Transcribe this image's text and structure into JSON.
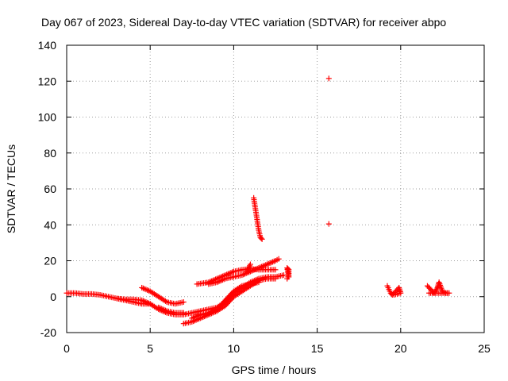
{
  "chart_data": {
    "type": "scatter",
    "title": "Day 067 of 2023, Sidereal Day-to-day VTEC variation (SDTVAR) for receiver abpo",
    "xlabel": "GPS time / hours",
    "ylabel": "SDTVAR / TECUs",
    "xlim": [
      0,
      25
    ],
    "ylim": [
      -20,
      140
    ],
    "xticks": [
      0,
      5,
      10,
      15,
      20,
      25
    ],
    "yticks": [
      -20,
      0,
      20,
      40,
      60,
      80,
      100,
      120,
      140
    ],
    "grid": true,
    "marker": "+",
    "marker_color": "#ff0000",
    "series": [
      {
        "name": "SDTVAR",
        "segments": [
          {
            "points": [
              [
                0.0,
                2
              ],
              [
                0.5,
                2
              ],
              [
                1.0,
                1.5
              ],
              [
                1.5,
                1.5
              ],
              [
                2.0,
                1
              ],
              [
                2.5,
                0
              ],
              [
                3.0,
                -1
              ],
              [
                3.5,
                -1.5
              ],
              [
                4.0,
                -1.5
              ],
              [
                4.5,
                -2
              ],
              [
                5.0,
                -4
              ],
              [
                5.5,
                -7
              ],
              [
                6.0,
                -9
              ],
              [
                6.5,
                -10
              ],
              [
                7.0,
                -10
              ],
              [
                7.5,
                -9
              ],
              [
                8.0,
                -8
              ],
              [
                8.5,
                -7
              ],
              [
                9.0,
                -6
              ],
              [
                9.5,
                -3
              ],
              [
                10.0,
                2
              ],
              [
                10.5,
                5
              ],
              [
                11.0,
                8
              ],
              [
                11.5,
                10
              ],
              [
                12.0,
                11
              ],
              [
                12.5,
                11
              ],
              [
                13.0,
                12
              ]
            ]
          },
          {
            "points": [
              [
                3.0,
                -1
              ],
              [
                3.5,
                -2
              ],
              [
                4.0,
                -3
              ],
              [
                4.5,
                -4
              ],
              [
                5.0,
                -4
              ]
            ]
          },
          {
            "points": [
              [
                4.5,
                5
              ],
              [
                5.0,
                3
              ],
              [
                5.5,
                0
              ],
              [
                6.0,
                -3
              ],
              [
                6.5,
                -4
              ],
              [
                7.0,
                -3
              ]
            ]
          },
          {
            "points": [
              [
                5.5,
                -6
              ],
              [
                6.0,
                -8
              ],
              [
                6.5,
                -9
              ],
              [
                7.0,
                -9
              ]
            ]
          },
          {
            "points": [
              [
                7.0,
                -15
              ],
              [
                7.5,
                -14
              ],
              [
                8.0,
                -12
              ],
              [
                8.5,
                -10
              ],
              [
                9.0,
                -8
              ],
              [
                9.5,
                -5
              ],
              [
                10.0,
                0
              ],
              [
                10.5,
                3
              ],
              [
                11.0,
                6
              ],
              [
                11.5,
                9
              ],
              [
                12.0,
                10
              ],
              [
                12.5,
                10
              ]
            ]
          },
          {
            "points": [
              [
                7.5,
                -12
              ],
              [
                8.0,
                -10
              ],
              [
                8.5,
                -9
              ],
              [
                9.0,
                -7
              ],
              [
                9.5,
                -2
              ],
              [
                10.0,
                3
              ],
              [
                10.5,
                6
              ],
              [
                11.0,
                7
              ],
              [
                11.5,
                8
              ]
            ]
          },
          {
            "points": [
              [
                7.8,
                7
              ],
              [
                8.5,
                8
              ],
              [
                9.0,
                10
              ],
              [
                9.5,
                12
              ],
              [
                10.0,
                14
              ],
              [
                10.5,
                15
              ],
              [
                11.0,
                15.5
              ],
              [
                11.5,
                15
              ],
              [
                12.0,
                15
              ],
              [
                12.5,
                15
              ]
            ]
          },
          {
            "points": [
              [
                8.5,
                7
              ],
              [
                9.0,
                8
              ],
              [
                9.5,
                10
              ],
              [
                10.0,
                11
              ],
              [
                10.5,
                12
              ],
              [
                11.0,
                14
              ],
              [
                11.5,
                16
              ],
              [
                12.0,
                18
              ],
              [
                12.5,
                20
              ],
              [
                12.7,
                21
              ]
            ]
          },
          {
            "points": [
              [
                10.8,
                14
              ],
              [
                11.0,
                18
              ]
            ]
          },
          {
            "points": [
              [
                11.2,
                55
              ],
              [
                11.25,
                52
              ],
              [
                11.3,
                49
              ],
              [
                11.35,
                46
              ],
              [
                11.4,
                43
              ],
              [
                11.45,
                40
              ],
              [
                11.5,
                37
              ],
              [
                11.55,
                35
              ],
              [
                11.6,
                33
              ],
              [
                11.7,
                32
              ]
            ]
          },
          {
            "points": [
              [
                13.2,
                10
              ],
              [
                13.3,
                12
              ],
              [
                13.3,
                15
              ],
              [
                13.2,
                16
              ],
              [
                13.3,
                11
              ]
            ]
          },
          {
            "points": [
              [
                15.7,
                121.5
              ]
            ]
          },
          {
            "points": [
              [
                15.7,
                40.5
              ]
            ]
          },
          {
            "points": [
              [
                19.2,
                6
              ],
              [
                19.3,
                4
              ],
              [
                19.4,
                2
              ],
              [
                19.5,
                1
              ],
              [
                19.7,
                3
              ],
              [
                19.9,
                5
              ],
              [
                20.0,
                2
              ],
              [
                19.6,
                1
              ]
            ]
          },
          {
            "points": [
              [
                21.6,
                6
              ],
              [
                21.8,
                4
              ],
              [
                22.0,
                2
              ],
              [
                22.2,
                5
              ],
              [
                22.3,
                8
              ],
              [
                22.5,
                3
              ],
              [
                22.7,
                2
              ],
              [
                22.9,
                2
              ],
              [
                21.7,
                2
              ]
            ]
          }
        ]
      }
    ]
  }
}
